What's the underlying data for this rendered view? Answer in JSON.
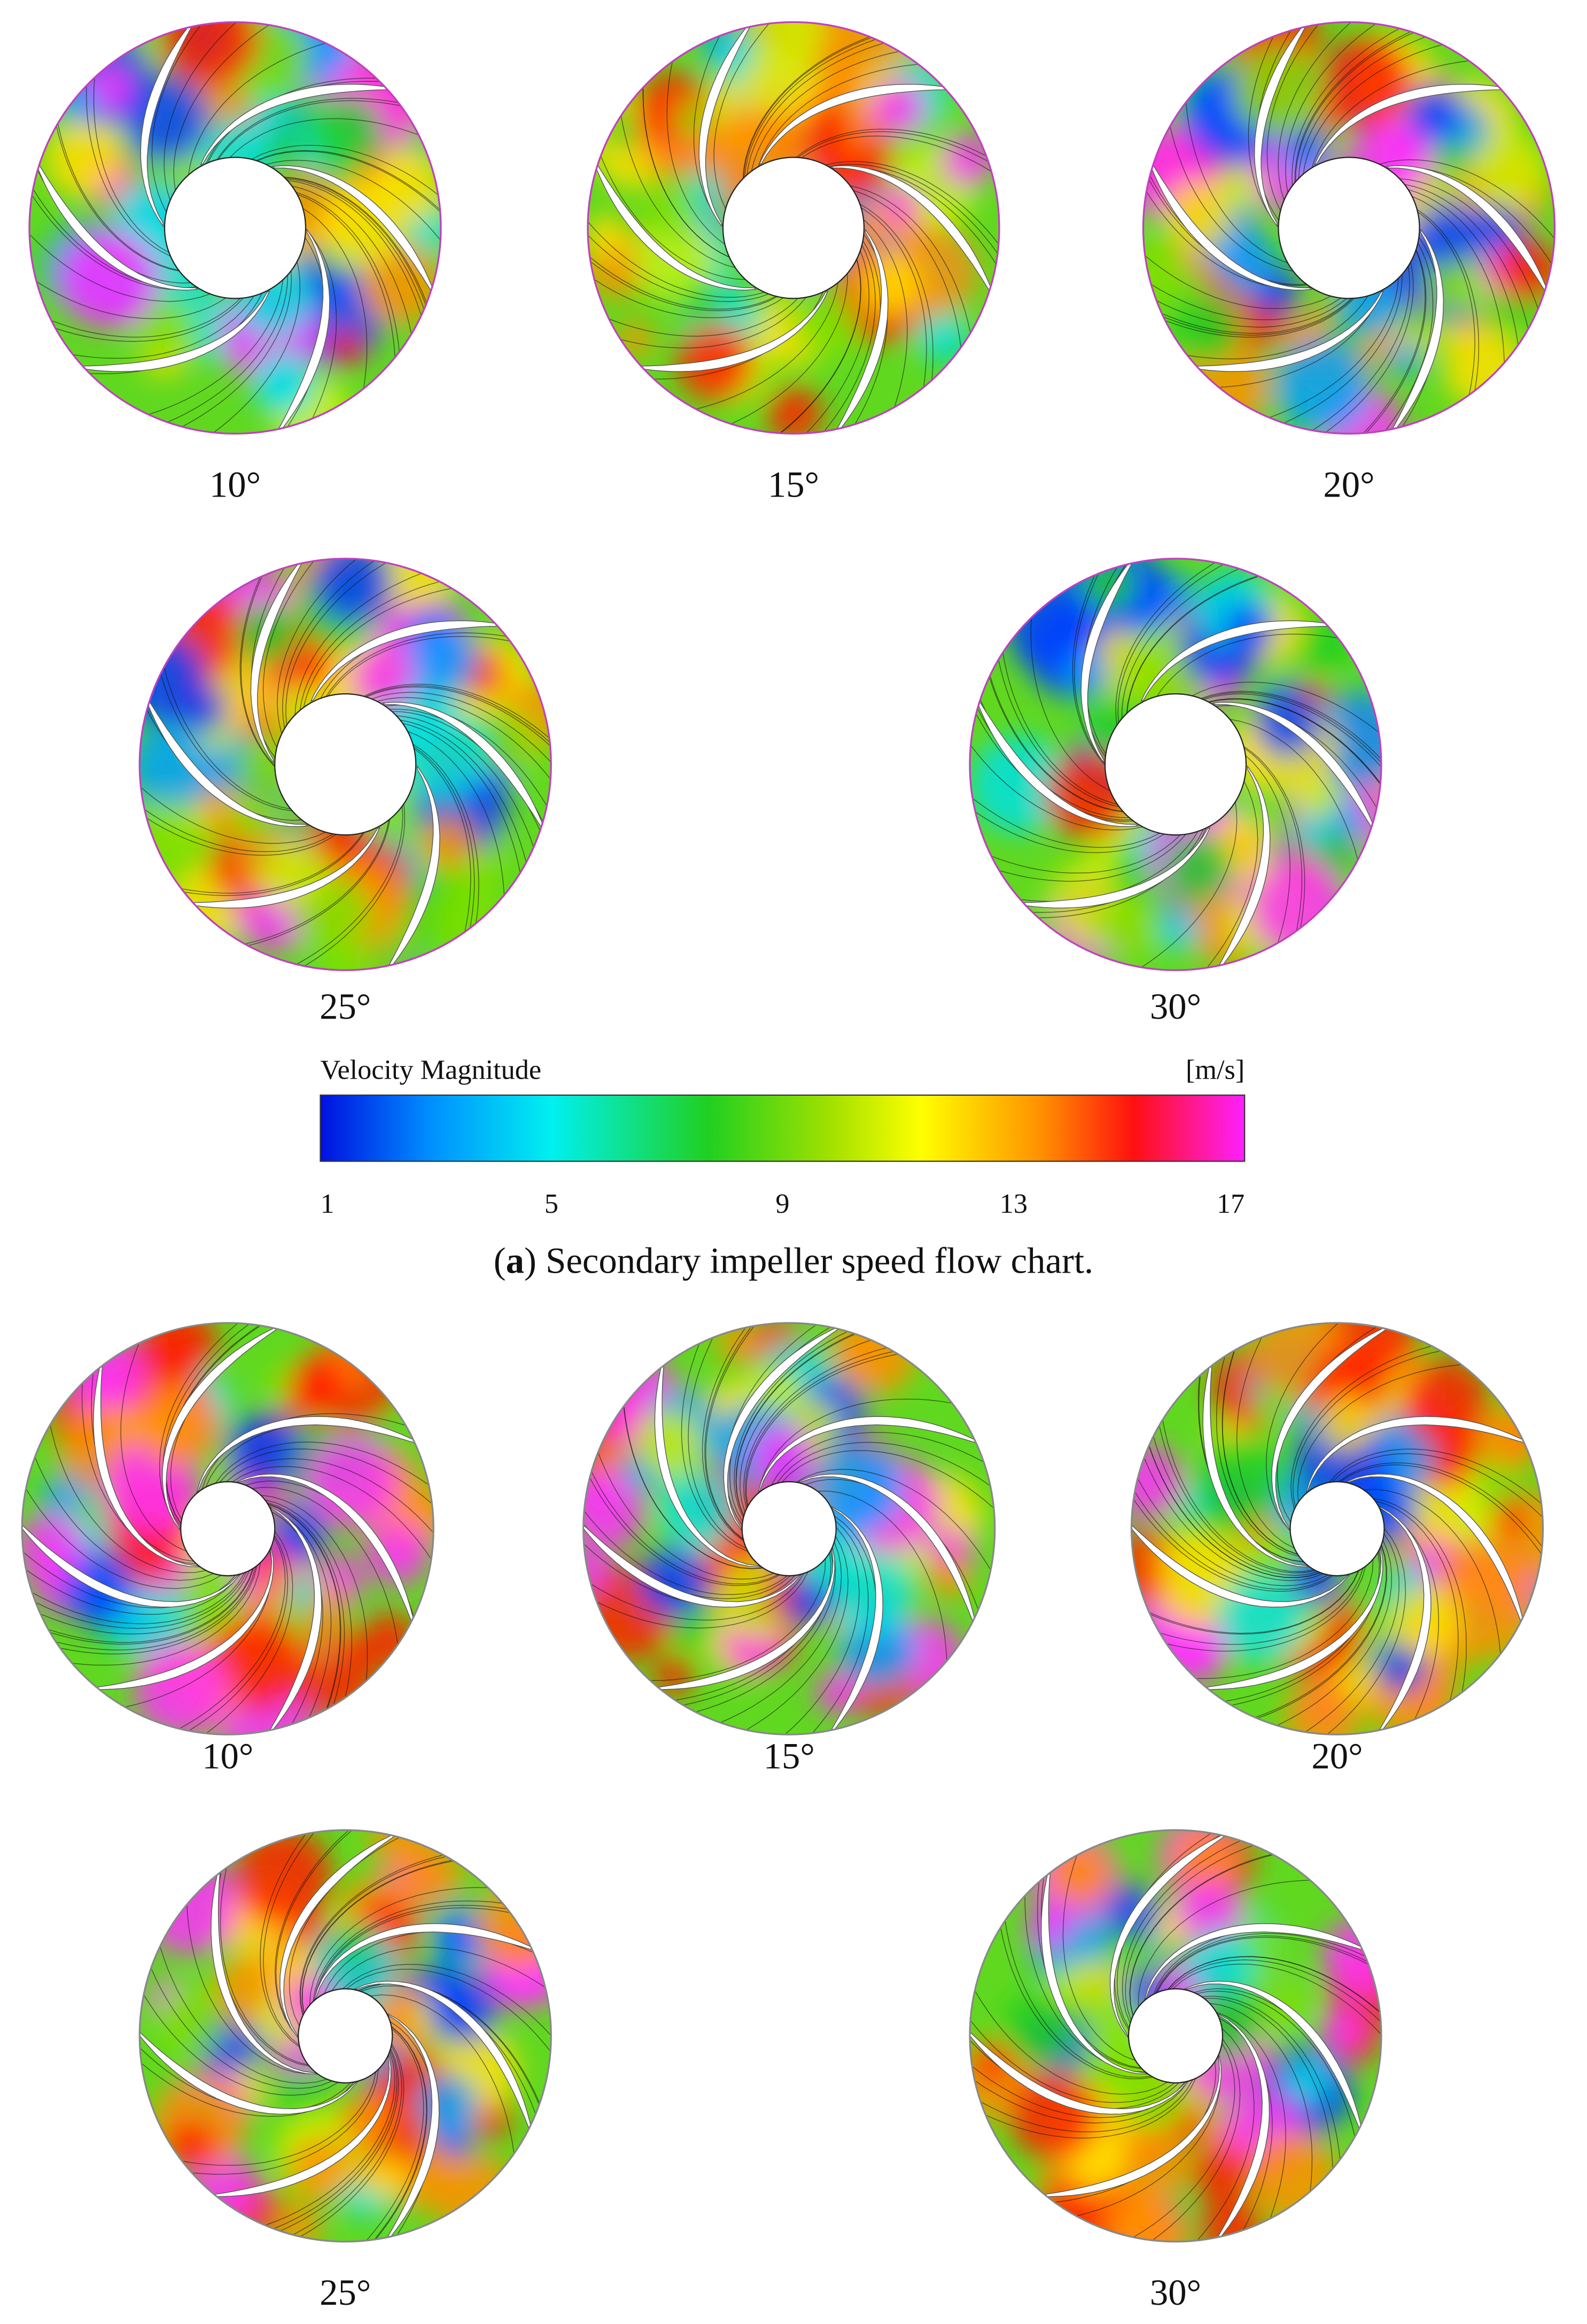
{
  "figure_a": {
    "angles": [
      "10°",
      "15°",
      "20°",
      "25°",
      "30°"
    ]
  },
  "colorbar": {
    "title": "Velocity Magnitude",
    "unit": "[m/s]",
    "range": [
      1,
      17
    ],
    "ticks": [
      1,
      5,
      9,
      13,
      17
    ]
  },
  "caption": {
    "open": "(",
    "label": "a",
    "text": ") Secondary impeller speed flow chart."
  },
  "figure_b": {
    "angles": [
      "10°",
      "15°",
      "20°",
      "25°",
      "30°"
    ]
  }
}
